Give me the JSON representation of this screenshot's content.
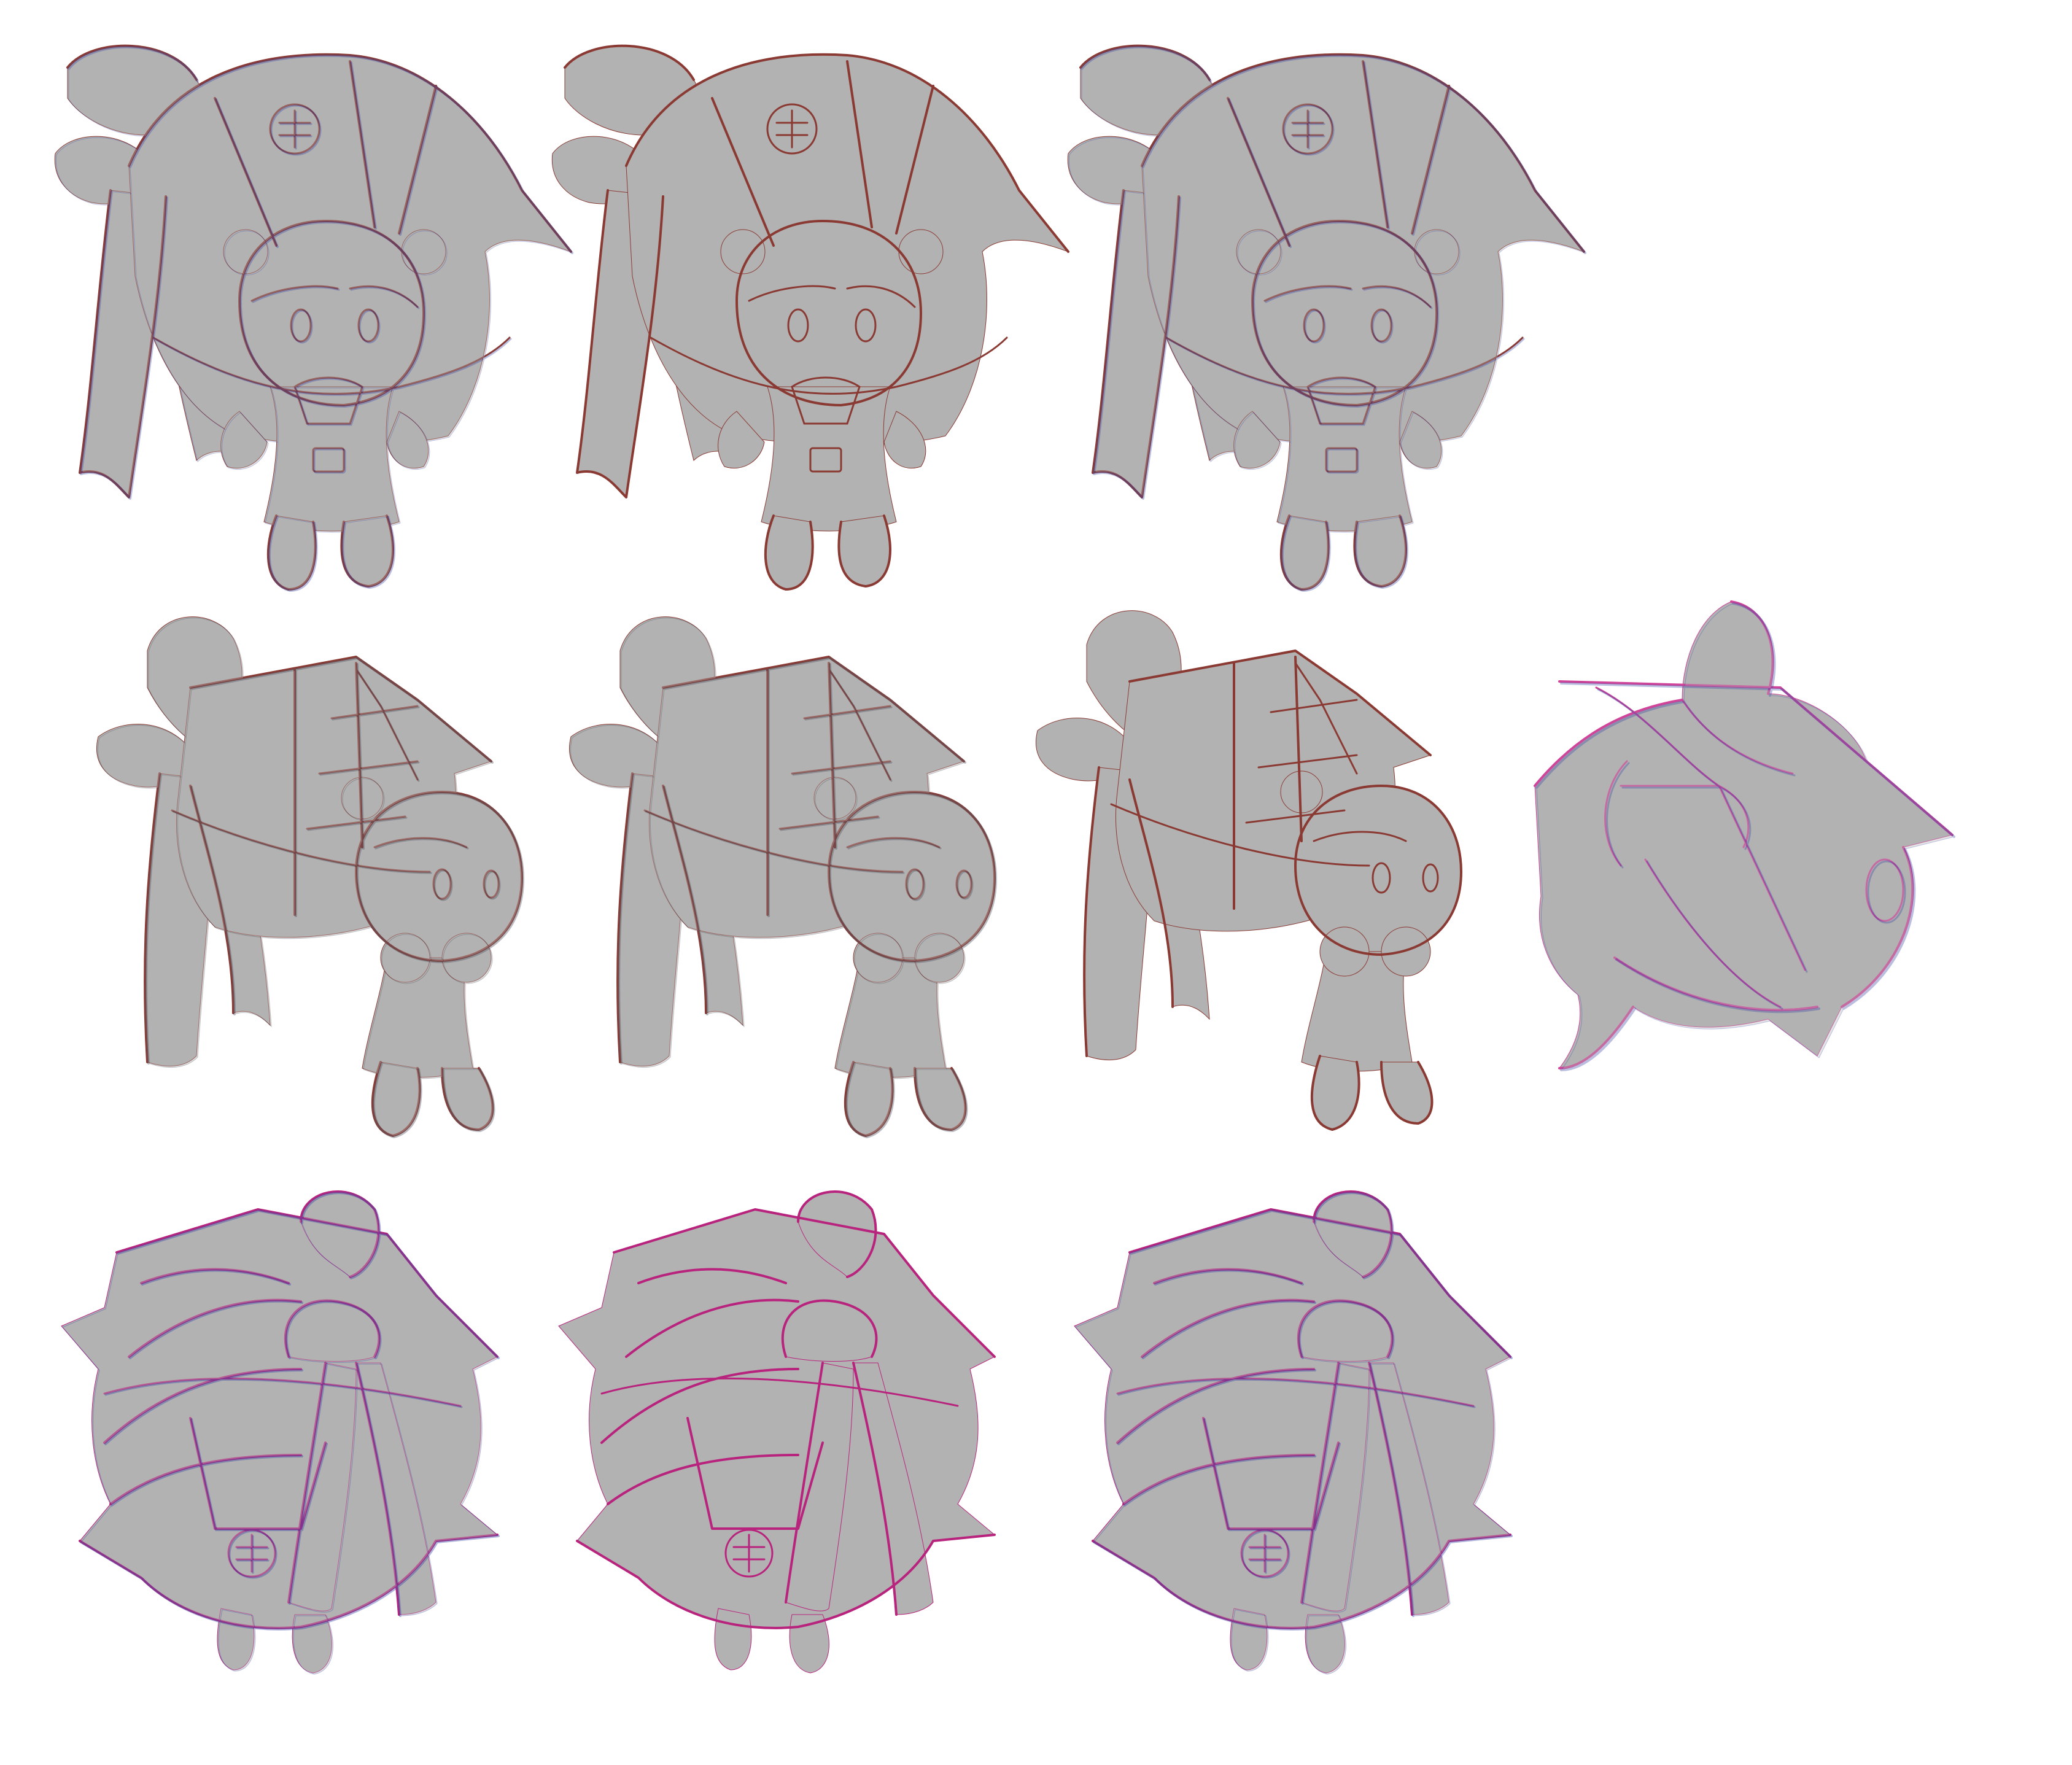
{
  "sheet": {
    "background": "#ffffff",
    "fill_color": "#b2b2b2",
    "line_colors": {
      "red": "#8a3a33",
      "blue": "#3c4aa8",
      "pink": "#d0459a",
      "magenta": "#b8247d",
      "dark": "#555a66"
    },
    "rows": [
      {
        "view": "front",
        "poses": [
          "front-idle-1",
          "front-idle-2",
          "front-idle-3"
        ]
      },
      {
        "view": "side",
        "poses": [
          "side-walk-1",
          "side-walk-2",
          "side-walk-3",
          "back-three-quarter"
        ]
      },
      {
        "view": "back",
        "poses": [
          "back-idle-1",
          "back-idle-2",
          "back-idle-3"
        ]
      }
    ]
  }
}
